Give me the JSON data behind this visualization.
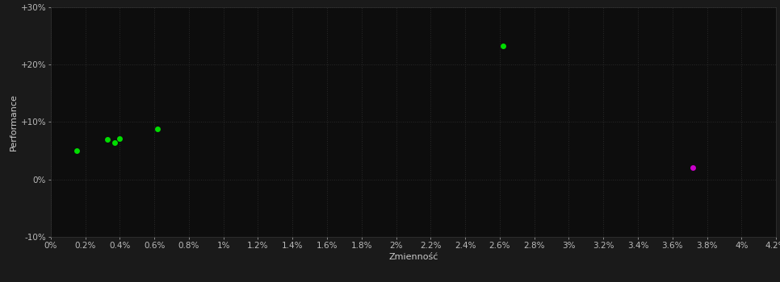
{
  "background_color": "#1a1a1a",
  "plot_bg_color": "#0d0d0d",
  "grid_color": "#2a2a2a",
  "grid_style": ":",
  "xlabel": "Zmienność",
  "ylabel": "Performance",
  "xlim": [
    0,
    0.042
  ],
  "ylim": [
    -0.1,
    0.3
  ],
  "xticks": [
    0.0,
    0.002,
    0.004,
    0.006,
    0.008,
    0.01,
    0.012,
    0.014,
    0.016,
    0.018,
    0.02,
    0.022,
    0.024,
    0.026,
    0.028,
    0.03,
    0.032,
    0.034,
    0.036,
    0.038,
    0.04,
    0.042
  ],
  "xtick_labels": [
    "0%",
    "0.2%",
    "0.4%",
    "0.6%",
    "0.8%",
    "1%",
    "1.2%",
    "1.4%",
    "1.6%",
    "1.8%",
    "2%",
    "2.2%",
    "2.4%",
    "2.6%",
    "2.8%",
    "3%",
    "3.2%",
    "3.4%",
    "3.6%",
    "3.8%",
    "4%",
    "4.2%"
  ],
  "yticks": [
    -0.1,
    0.0,
    0.1,
    0.2,
    0.3
  ],
  "ytick_labels": [
    "-10%",
    "0%",
    "+10%",
    "+20%",
    "+30%"
  ],
  "green_points": [
    [
      0.0015,
      0.05
    ],
    [
      0.0033,
      0.07
    ],
    [
      0.0037,
      0.064
    ],
    [
      0.004,
      0.071
    ],
    [
      0.0062,
      0.088
    ],
    [
      0.0262,
      0.232
    ]
  ],
  "magenta_points": [
    [
      0.0372,
      0.02
    ]
  ],
  "green_color": "#00dd00",
  "magenta_color": "#cc00cc",
  "marker_size": 5,
  "text_color": "#cccccc",
  "tick_color": "#bbbbbb",
  "axis_color": "#333333",
  "label_fontsize": 8,
  "tick_fontsize": 7.5
}
